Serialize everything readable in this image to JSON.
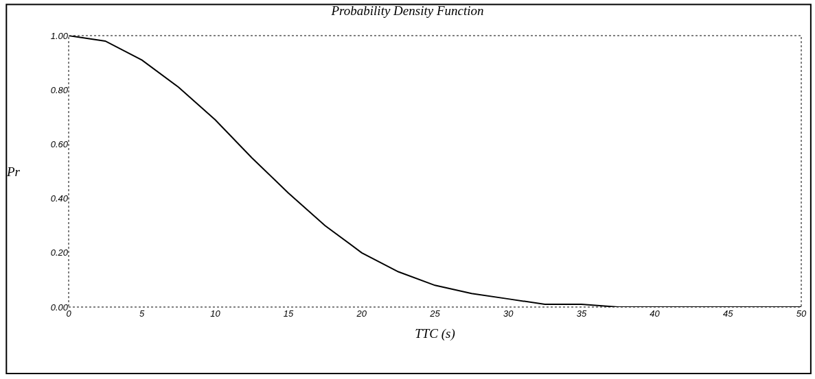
{
  "chart_data": {
    "type": "line",
    "title": "Probability Density Function",
    "xlabel": "TTC (s)",
    "ylabel": "Pr",
    "x": [
      0,
      2.5,
      5,
      7.5,
      10,
      12.5,
      15,
      17.5,
      20,
      22.5,
      25,
      27.5,
      30,
      32.5,
      35,
      37.5,
      40,
      45,
      50
    ],
    "series": [
      {
        "color": "#000000",
        "values": [
          1.0,
          0.98,
          0.91,
          0.81,
          0.69,
          0.55,
          0.42,
          0.3,
          0.2,
          0.13,
          0.08,
          0.05,
          0.03,
          0.01,
          0.01,
          0.0,
          0.0,
          0.0,
          0.0
        ]
      }
    ],
    "xlim": [
      0,
      50
    ],
    "xticks": [
      0,
      5,
      10,
      15,
      20,
      25,
      30,
      35,
      40,
      45,
      50
    ],
    "ylim": [
      0,
      1
    ],
    "yticks": [
      {
        "value": 0,
        "label": "0.00"
      },
      {
        "value": 0.2,
        "label": "0.20"
      },
      {
        "value": 0.4,
        "label": "0.40"
      },
      {
        "value": 0.6,
        "label": "0.60"
      },
      {
        "value": 0.8,
        "label": "0.80"
      },
      {
        "value": 1,
        "label": "1.00"
      }
    ],
    "marker": "none",
    "line_style": "solid"
  }
}
